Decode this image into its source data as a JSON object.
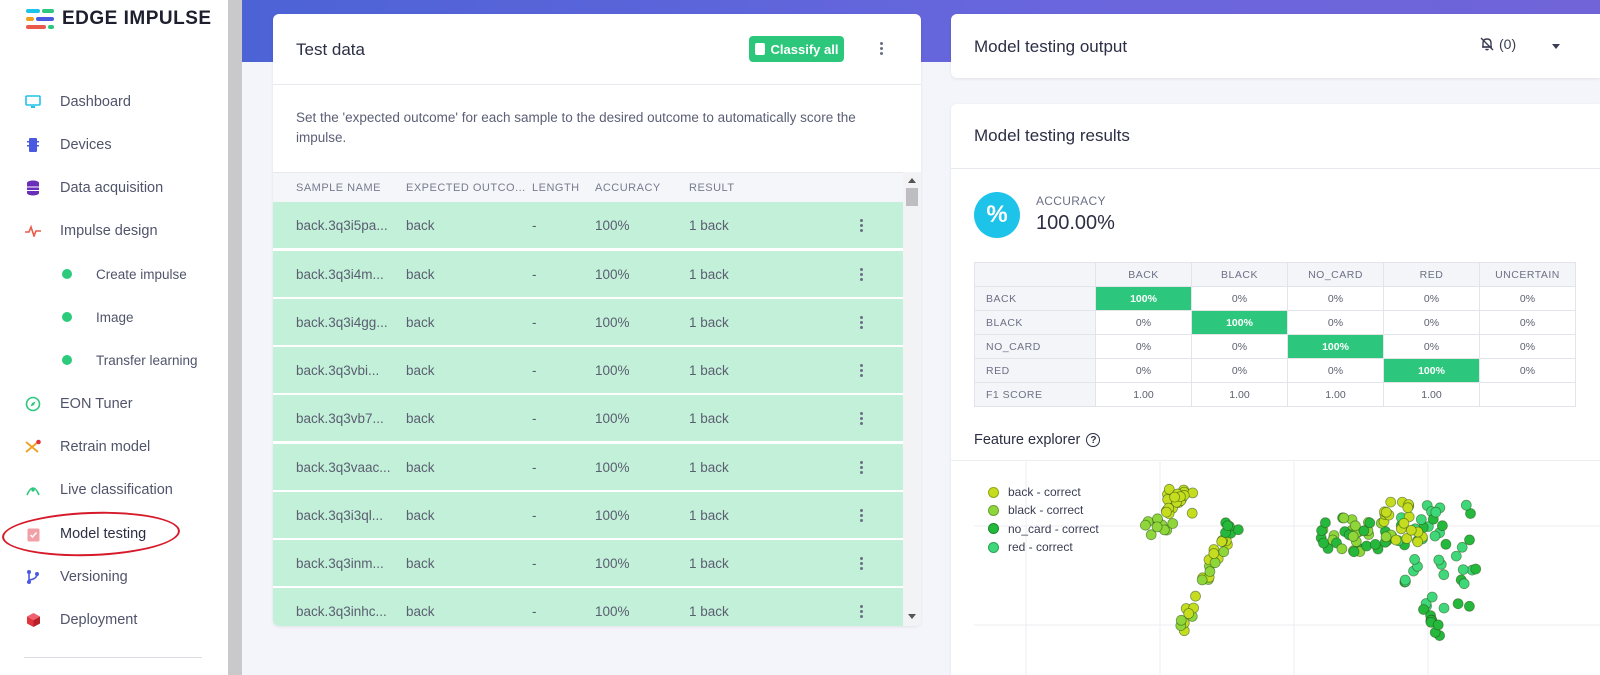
{
  "brand": {
    "name": "EDGE IMPULSE"
  },
  "sidebar": {
    "items": [
      {
        "label": "Dashboard",
        "icon": "monitor-icon",
        "color": "#1ec3ea"
      },
      {
        "label": "Devices",
        "icon": "chip-icon",
        "color": "#4a5ae0"
      },
      {
        "label": "Data acquisition",
        "icon": "database-icon",
        "color": "#6a2fb8"
      },
      {
        "label": "Impulse design",
        "icon": "pulse-icon",
        "color": "#ea5a4a"
      },
      {
        "label": "EON Tuner",
        "icon": "compass-icon",
        "color": "#2cc77c"
      },
      {
        "label": "Retrain model",
        "icon": "shuffle-icon",
        "color": "#f0a020"
      },
      {
        "label": "Live classification",
        "icon": "signal-icon",
        "color": "#2cc77c"
      },
      {
        "label": "Model testing",
        "icon": "clipboard-check-icon",
        "color": "#ea5a6a"
      },
      {
        "label": "Versioning",
        "icon": "branch-icon",
        "color": "#4a5ae0"
      },
      {
        "label": "Deployment",
        "icon": "cube-icon",
        "color": "#e0343c"
      }
    ],
    "subitems": [
      "Create impulse",
      "Image",
      "Transfer learning"
    ]
  },
  "test_data": {
    "title": "Test data",
    "classify_label": "Classify all",
    "description": "Set the 'expected outcome' for each sample to the desired outcome to automatically score the impulse.",
    "columns": [
      "SAMPLE NAME",
      "EXPECTED OUTCO...",
      "LENGTH",
      "ACCURACY",
      "RESULT"
    ],
    "rows": [
      {
        "name": "back.3q3i5pa...",
        "expected": "back",
        "length": "-",
        "accuracy": "100%",
        "result": "1 back"
      },
      {
        "name": "back.3q3i4m...",
        "expected": "back",
        "length": "-",
        "accuracy": "100%",
        "result": "1 back"
      },
      {
        "name": "back.3q3i4gg...",
        "expected": "back",
        "length": "-",
        "accuracy": "100%",
        "result": "1 back"
      },
      {
        "name": "back.3q3vbi...",
        "expected": "back",
        "length": "-",
        "accuracy": "100%",
        "result": "1 back"
      },
      {
        "name": "back.3q3vb7...",
        "expected": "back",
        "length": "-",
        "accuracy": "100%",
        "result": "1 back"
      },
      {
        "name": "back.3q3vaac...",
        "expected": "back",
        "length": "-",
        "accuracy": "100%",
        "result": "1 back"
      },
      {
        "name": "back.3q3i3ql...",
        "expected": "back",
        "length": "-",
        "accuracy": "100%",
        "result": "1 back"
      },
      {
        "name": "back.3q3inm...",
        "expected": "back",
        "length": "-",
        "accuracy": "100%",
        "result": "1 back"
      },
      {
        "name": "back.3q3inhc...",
        "expected": "back",
        "length": "-",
        "accuracy": "100%",
        "result": "1 back"
      }
    ]
  },
  "output": {
    "title": "Model testing output",
    "notifications": "(0)"
  },
  "results": {
    "title": "Model testing results",
    "accuracy_label": "ACCURACY",
    "accuracy_value": "100.00%",
    "accuracy_icon": "%",
    "matrix": {
      "columns": [
        "BACK",
        "BLACK",
        "NO_CARD",
        "RED",
        "UNCERTAIN"
      ],
      "rows": [
        {
          "label": "BACK",
          "cells": [
            "100%",
            "0%",
            "0%",
            "0%",
            "0%"
          ],
          "hit": 0
        },
        {
          "label": "BLACK",
          "cells": [
            "0%",
            "100%",
            "0%",
            "0%",
            "0%"
          ],
          "hit": 1
        },
        {
          "label": "NO_CARD",
          "cells": [
            "0%",
            "0%",
            "100%",
            "0%",
            "0%"
          ],
          "hit": 2
        },
        {
          "label": "RED",
          "cells": [
            "0%",
            "0%",
            "0%",
            "100%",
            "0%"
          ],
          "hit": 3
        },
        {
          "label": "F1 SCORE",
          "cells": [
            "1.00",
            "1.00",
            "1.00",
            "1.00",
            ""
          ],
          "hit": -1
        }
      ]
    },
    "feature_explorer": {
      "title": "Feature explorer",
      "legend": [
        {
          "label": "back - correct",
          "color": "#c6dc1e"
        },
        {
          "label": "black - correct",
          "color": "#8fd63a"
        },
        {
          "label": "no_card - correct",
          "color": "#24b93c"
        },
        {
          "label": "red - correct",
          "color": "#3ed87a"
        }
      ]
    }
  }
}
